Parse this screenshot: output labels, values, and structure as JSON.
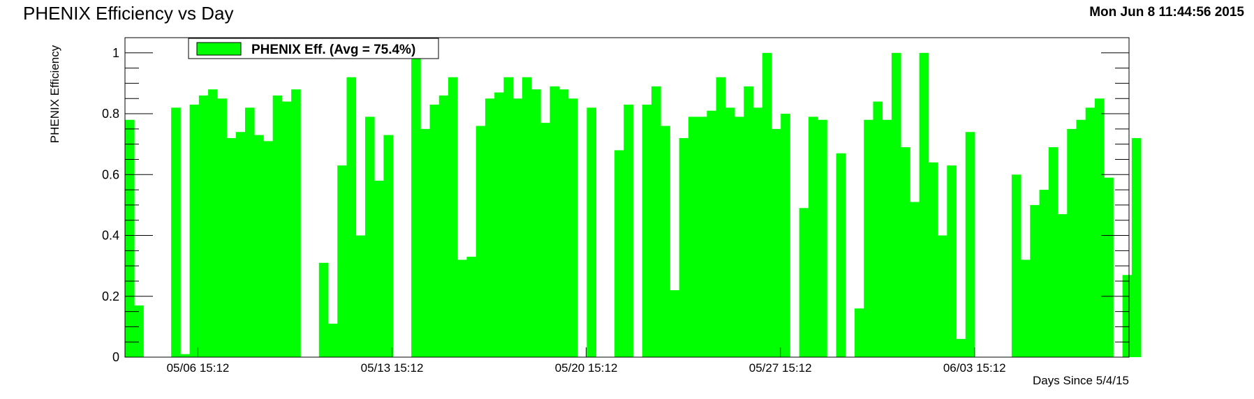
{
  "page": {
    "title": "PHENIX Efficiency vs Day",
    "timestamp": "Mon Jun  8 11:44:56 2015"
  },
  "chart_data": {
    "type": "bar",
    "title": "PHENIX Efficiency vs Day",
    "xlabel": "Days Since 5/4/15",
    "ylabel": "PHENIX Efficiency",
    "ylim": [
      0,
      1.05
    ],
    "yticks": [
      0,
      0.2,
      0.4,
      0.6,
      0.8,
      1
    ],
    "ytick_labels": [
      "0",
      "0.2",
      "0.4",
      "0.6",
      "0.8",
      "1"
    ],
    "xlim": [
      0,
      36.2
    ],
    "bin_width": 0.333,
    "xticks": [
      {
        "x": 2.63,
        "label": "05/06 15:12"
      },
      {
        "x": 9.63,
        "label": "05/13 15:12"
      },
      {
        "x": 16.63,
        "label": "05/20 15:12"
      },
      {
        "x": 23.63,
        "label": "05/27 15:12"
      },
      {
        "x": 30.63,
        "label": "06/03 15:12"
      }
    ],
    "legend": {
      "label": "PHENIX Eff. (Avg =  75.4%)",
      "position": "top-left"
    },
    "grid": false,
    "bar_color": "#00ff00",
    "values": [
      0.78,
      0.17,
      0,
      0,
      0,
      0.82,
      0.01,
      0.83,
      0.86,
      0.88,
      0.85,
      0.72,
      0.74,
      0.82,
      0.73,
      0.71,
      0.86,
      0.84,
      0.88,
      0,
      0,
      0.31,
      0.11,
      0.63,
      0.92,
      0.4,
      0.79,
      0.58,
      0.73,
      0,
      0,
      0.99,
      0.75,
      0.83,
      0.86,
      0.92,
      0.32,
      0.33,
      0.76,
      0.85,
      0.87,
      0.92,
      0.85,
      0.92,
      0.88,
      0.77,
      0.89,
      0.88,
      0.85,
      0,
      0.82,
      0,
      0,
      0.68,
      0.83,
      0,
      0.83,
      0.89,
      0.76,
      0.22,
      0.72,
      0.79,
      0.79,
      0.81,
      0.92,
      0.82,
      0.79,
      0.89,
      0.82,
      1.0,
      0.75,
      0.8,
      0,
      0.49,
      0.79,
      0.78,
      0,
      0.67,
      0,
      0.16,
      0.78,
      0.84,
      0.78,
      1.0,
      0.69,
      0.51,
      1.0,
      0.64,
      0.4,
      0.63,
      0.06,
      0.74,
      0,
      0,
      0,
      0,
      0.6,
      0.32,
      0.5,
      0.55,
      0.69,
      0.47,
      0.75,
      0.78,
      0.82,
      0.85,
      0.59,
      0,
      0.27,
      0.72
    ]
  }
}
